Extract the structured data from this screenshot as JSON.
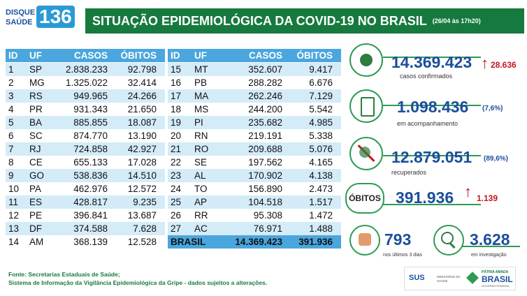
{
  "logo": {
    "top": "DISQUE",
    "bottom": "SAÚDE",
    "number": "136"
  },
  "header": {
    "title": "SITUAÇÃO EPIDEMIOLÓGICA DA COVID-19 NO BRASIL",
    "date": "(26/04 às 17h20)"
  },
  "tables": [
    {
      "headers": [
        "ID",
        "UF",
        "CASOS",
        "ÓBITOS"
      ],
      "rows": [
        [
          "1",
          "SP",
          "2.838.233",
          "92.798"
        ],
        [
          "2",
          "MG",
          "1.325.022",
          "32.414"
        ],
        [
          "3",
          "RS",
          "949.965",
          "24.266"
        ],
        [
          "4",
          "PR",
          "931.343",
          "21.650"
        ],
        [
          "5",
          "BA",
          "885.855",
          "18.087"
        ],
        [
          "6",
          "SC",
          "874.770",
          "13.190"
        ],
        [
          "7",
          "RJ",
          "724.858",
          "42.927"
        ],
        [
          "8",
          "CE",
          "655.133",
          "17.028"
        ],
        [
          "9",
          "GO",
          "538.836",
          "14.510"
        ],
        [
          "10",
          "PA",
          "462.976",
          "12.572"
        ],
        [
          "11",
          "ES",
          "428.817",
          "9.235"
        ],
        [
          "12",
          "PE",
          "396.841",
          "13.687"
        ],
        [
          "13",
          "DF",
          "374.588",
          "7.628"
        ],
        [
          "14",
          "AM",
          "368.139",
          "12.528"
        ]
      ]
    },
    {
      "headers": [
        "ID",
        "UF",
        "CASOS",
        "ÓBITOS"
      ],
      "rows": [
        [
          "15",
          "MT",
          "352.607",
          "9.417"
        ],
        [
          "16",
          "PB",
          "288.282",
          "6.676"
        ],
        [
          "17",
          "MA",
          "262.246",
          "7.129"
        ],
        [
          "18",
          "MS",
          "244.200",
          "5.542"
        ],
        [
          "19",
          "PI",
          "235.682",
          "4.985"
        ],
        [
          "20",
          "RN",
          "219.191",
          "5.338"
        ],
        [
          "21",
          "RO",
          "209.688",
          "5.076"
        ],
        [
          "22",
          "SE",
          "197.562",
          "4.165"
        ],
        [
          "23",
          "AL",
          "170.902",
          "4.138"
        ],
        [
          "24",
          "TO",
          "156.890",
          "2.473"
        ],
        [
          "25",
          "AP",
          "104.518",
          "1.517"
        ],
        [
          "26",
          "RR",
          "95.308",
          "1.472"
        ],
        [
          "27",
          "AC",
          "76.971",
          "1.488"
        ]
      ],
      "total": [
        "BRASIL",
        "14.369.423",
        "391.936"
      ]
    }
  ],
  "stats": {
    "confirmed": {
      "value": "14.369.423",
      "new": "28.636",
      "label": "casos confirmados"
    },
    "monitoring": {
      "value": "1.098.436",
      "pct": "(7,6%)",
      "label": "em acompanhamento"
    },
    "recovered": {
      "value": "12.879.051",
      "pct": "(89,6%)",
      "label": "recuperados"
    },
    "deaths": {
      "title": "ÓBITOS",
      "value": "391.936",
      "new": "1.139"
    },
    "recent": {
      "value": "793",
      "label": "nos últimos 3 dias"
    },
    "investigation": {
      "value": "3.628",
      "label": "em investigação"
    }
  },
  "footer": {
    "line1": "Fonte: Secretarias Estaduais de Saúde;",
    "line2": "Sistema de Informação da Vigilância Epidemiológica da Gripe - dados sujeitos a alterações."
  },
  "logos": {
    "sus": "SUS",
    "ministry": "MINISTÉRIO DA SAÚDE",
    "patria": "PÁTRIA AMADA",
    "brasil": "BRASIL",
    "gov": "GOVERNO FEDERAL"
  }
}
